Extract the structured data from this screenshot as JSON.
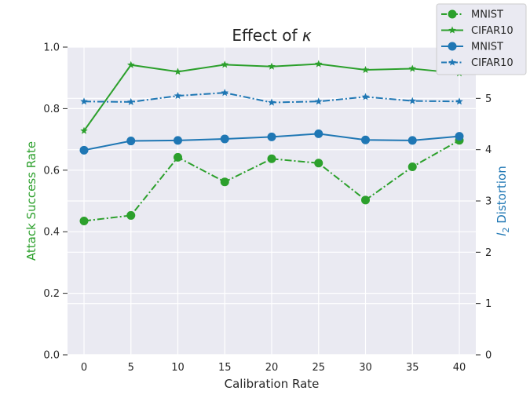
{
  "chart_data": {
    "type": "line",
    "title_prefix": "Effect of ",
    "title_symbol": "κ",
    "xlabel": "Calibration Rate",
    "ylabel_left": "Attack Success Rate",
    "ylabel_right_symbol": "l",
    "ylabel_right_subscript": "2",
    "ylabel_right_text": " Distortion",
    "x": [
      0,
      5,
      10,
      15,
      20,
      25,
      30,
      35,
      40
    ],
    "x_ticks": [
      "0",
      "5",
      "10",
      "15",
      "20",
      "25",
      "30",
      "35",
      "40"
    ],
    "ylim_left": [
      0.0,
      1.0
    ],
    "y_ticks_left": [
      "0.0",
      "0.2",
      "0.4",
      "0.6",
      "0.8",
      "1.0"
    ],
    "ylim_right": [
      0,
      6
    ],
    "y_ticks_right": [
      "0",
      "1",
      "2",
      "3",
      "4",
      "5"
    ],
    "grid": true,
    "legend_position": "top-right",
    "colors": {
      "green": "#2ca02c",
      "blue": "#1f77b4",
      "background": "#eaeaf2",
      "grid": "#ffffff"
    },
    "series": [
      {
        "name": "MNIST",
        "axis": "left",
        "color": "#2ca02c",
        "linestyle": "dashdot",
        "marker": "circle",
        "values": [
          0.435,
          0.453,
          0.642,
          0.562,
          0.637,
          0.623,
          0.503,
          0.611,
          0.697
        ]
      },
      {
        "name": "CIFAR10",
        "axis": "left",
        "color": "#2ca02c",
        "linestyle": "solid",
        "marker": "star",
        "values": [
          0.728,
          0.942,
          0.92,
          0.943,
          0.937,
          0.945,
          0.926,
          0.93,
          0.915
        ]
      },
      {
        "name": "MNIST",
        "axis": "right",
        "color": "#1f77b4",
        "linestyle": "solid",
        "marker": "circle",
        "values": [
          3.99,
          4.17,
          4.18,
          4.21,
          4.25,
          4.31,
          4.19,
          4.18,
          4.26
        ]
      },
      {
        "name": "CIFAR10",
        "axis": "right",
        "color": "#1f77b4",
        "linestyle": "dashdot",
        "marker": "star",
        "values": [
          4.94,
          4.93,
          5.05,
          5.11,
          4.92,
          4.94,
          5.03,
          4.95,
          4.94
        ]
      }
    ]
  }
}
